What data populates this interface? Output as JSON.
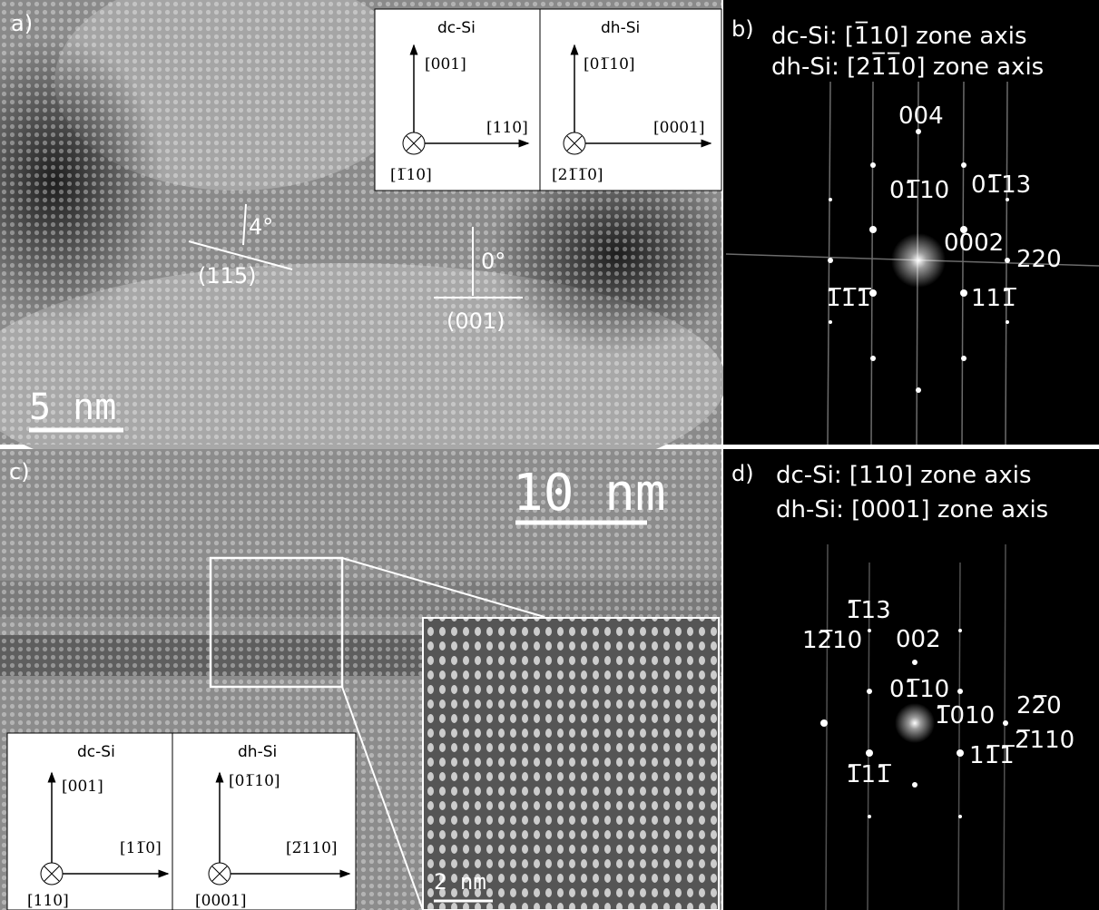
{
  "panel_a": {
    "label": "a)",
    "scale_bar": "5 nm",
    "annotations": [
      "4°",
      "(115)",
      "0°",
      "(001)"
    ],
    "inset": {
      "dc": {
        "title": "dc-Si",
        "up": "[001]",
        "right": "[110]",
        "into": "[1̅10]"
      },
      "dh": {
        "title": "dh-Si",
        "up": "[01̅10]",
        "right": "[0001]",
        "into": "[21̅1̅0]"
      }
    }
  },
  "panel_b": {
    "label": "b)",
    "zone_axes": [
      "dc-Si: [1̅10] zone axis",
      "dh-Si: [21̅1̅0] zone axis"
    ],
    "spots": [
      "004",
      "01̅10",
      "01̅13",
      "0002",
      "220",
      "1̅1̅1̅",
      "111̅"
    ]
  },
  "panel_c": {
    "label": "c)",
    "scale_bar": "10 nm",
    "inset_scale_bar": "2 nm",
    "inset": {
      "dc": {
        "title": "dc-Si",
        "up": "[001]",
        "right": "[11̅0]",
        "into": "[110]"
      },
      "dh": {
        "title": "dh-Si",
        "up": "[01̅10]",
        "right": "[2̅110]",
        "into": "[0001]"
      }
    }
  },
  "panel_d": {
    "label": "d)",
    "zone_axes": [
      "dc-Si: [110] zone axis",
      "dh-Si: [0001] zone axis"
    ],
    "spots": [
      "1̅13",
      "12̅10",
      "002",
      "01̅10",
      "1̅010",
      "22̅0",
      "2̅110",
      "11̅1̅",
      "1̅11̅"
    ]
  }
}
